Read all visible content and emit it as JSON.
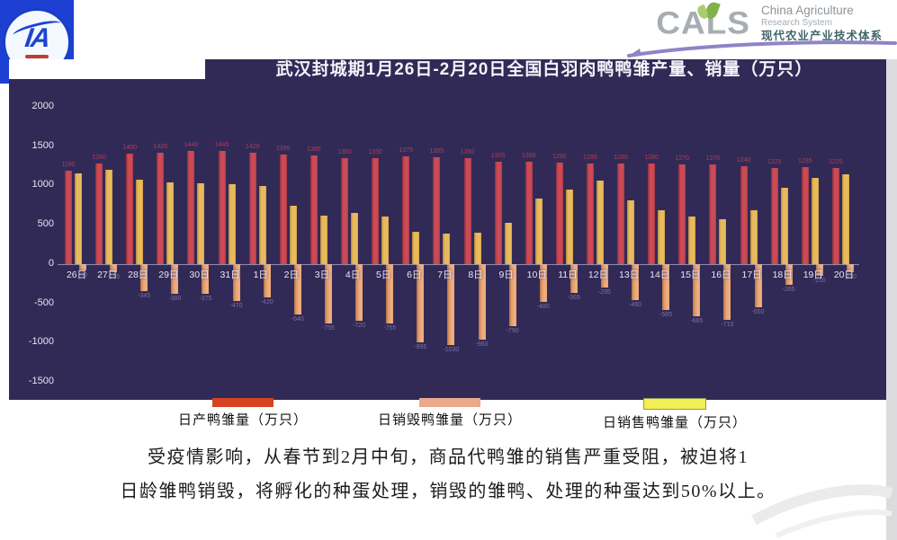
{
  "header": {
    "left_logo": {
      "monogram": "IA"
    },
    "cals_logo": {
      "wordmark": "CALS",
      "line1": "China Agriculture",
      "line2": "Research System",
      "line3": "现代农业产业技术体系"
    }
  },
  "chart_data": {
    "type": "bar",
    "title": "武汉封城期1月26日-2月20日全国白羽肉鸭鸭雏产量、销量（万只）",
    "xlabel": "",
    "ylabel": "",
    "ylim": [
      -1500,
      2000
    ],
    "yticks": [
      2000,
      1500,
      1000,
      500,
      0,
      -500,
      -1000,
      -1500
    ],
    "grid": false,
    "legend_position": "bottom",
    "background_color": "#322a56",
    "categories": [
      "26日",
      "27日",
      "28日",
      "29日",
      "30日",
      "31日",
      "1日",
      "2日",
      "3日",
      "4日",
      "5日",
      "6日",
      "7日",
      "8日",
      "9日",
      "10日",
      "11日",
      "12日",
      "13日",
      "14日",
      "15日",
      "16日",
      "17日",
      "18日",
      "19日",
      "20日"
    ],
    "series": [
      {
        "name": "日产鸭雏量（万只）",
        "color": "#cb4a55",
        "legend_color": "#d5431f",
        "values": [
          1190,
          1280,
          1400,
          1420,
          1440,
          1445,
          1420,
          1395,
          1385,
          1350,
          1350,
          1375,
          1365,
          1350,
          1305,
          1300,
          1290,
          1285,
          1280,
          1280,
          1270,
          1270,
          1240,
          1225,
          1235,
          1225
        ]
      },
      {
        "name": "日销毁鸭雏量（万只）",
        "color": "#e6a06e",
        "legend_color": "#e9a98a",
        "values": [
          -80,
          -105,
          -345,
          -380,
          -375,
          -470,
          -420,
          -640,
          -755,
          -720,
          -755,
          -995,
          -1030,
          -960,
          -790,
          -480,
          -365,
          -295,
          -460,
          -585,
          -665,
          -710,
          -550,
          -265,
          -150,
          -100
        ]
      },
      {
        "name": "日销售鸭雏量（万只）",
        "color": "#e9ba5c",
        "legend_color": "#f2ee55",
        "values": [
          1150,
          1200,
          1075,
          1040,
          1030,
          1020,
          995,
          745,
          620,
          650,
          605,
          410,
          390,
          400,
          525,
          835,
          950,
          1065,
          815,
          690,
          605,
          570,
          690,
          970,
          1100,
          1145
        ]
      }
    ]
  },
  "footer": {
    "line1": "受疫情影响，从春节到2月中旬，商品代鸭雏的销售严重受阻，被迫将1",
    "line2": "日龄雏鸭销毁，将孵化的种蛋处理，销毁的雏鸭、处理的种蛋达到50%以上。"
  }
}
